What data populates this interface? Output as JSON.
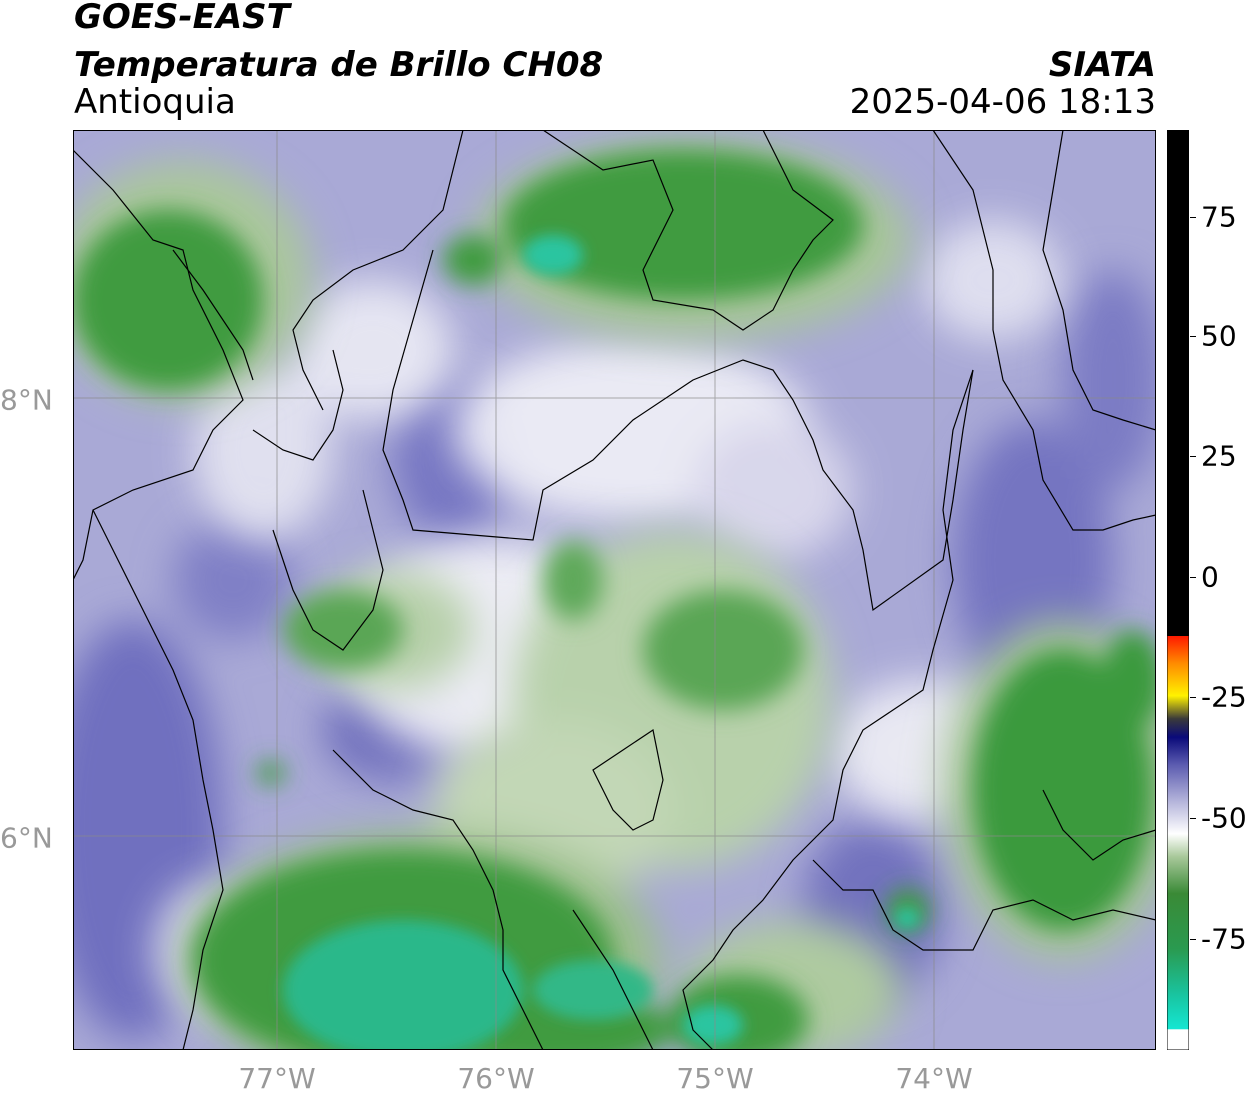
{
  "header": {
    "satellite": "GOES-EAST",
    "product": "Temperatura de Brillo CH08",
    "region": "Antioquia",
    "organization": "SIATA",
    "timestamp": "2025-04-06 18:13"
  },
  "map": {
    "lon_range": [
      -77.95,
      -73.0
    ],
    "lat_range": [
      5.0,
      9.2
    ],
    "lon_labels": [
      "77°W",
      "76°W",
      "75°W",
      "74°W"
    ],
    "lat_labels": [
      "8°N",
      "6°N"
    ],
    "gridlines": true
  },
  "colorbar": {
    "range": [
      -94,
      90
    ],
    "tick_labels": [
      "75",
      "50",
      "25",
      "0",
      "-25",
      "-50",
      "-75"
    ],
    "colors": {
      "cold_cyan": "#14e6d2",
      "green_mid": "#3a9a3c",
      "green_light": "#a8c89a",
      "white": "#ffffff",
      "lavender": "#b5b5db",
      "blue_purple": "#5c5cb0",
      "navy": "#0a0a7a",
      "yellow": "#fff200",
      "orange": "#ff8c00",
      "red": "#ff1a00",
      "black": "#000000"
    }
  }
}
